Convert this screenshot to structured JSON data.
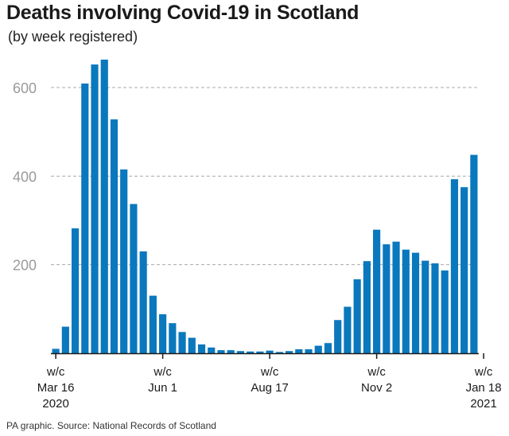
{
  "header": {
    "title": "Deaths involving Covid-19 in Scotland",
    "subtitle": "(by week registered)"
  },
  "footer": {
    "source": "PA graphic. Source: National Records of Scotland"
  },
  "colors": {
    "bar": "#0a78bd",
    "grid": "#aaaaaa",
    "axis": "#1a1a1a",
    "tick_label": "#9a9a9a"
  },
  "chart_data": {
    "type": "bar",
    "title": "Deaths involving Covid-19 in Scotland",
    "subtitle": "(by week registered)",
    "xlabel": "",
    "ylabel": "",
    "ylim": [
      0,
      700
    ],
    "yticks": [
      200,
      400,
      600
    ],
    "grid": true,
    "x_tick_labels": [
      {
        "index": 0,
        "lines": [
          "w/c",
          "Mar 16",
          "2020"
        ]
      },
      {
        "index": 11,
        "lines": [
          "w/c",
          "Jun 1"
        ]
      },
      {
        "index": 22,
        "lines": [
          "w/c",
          "Aug 17"
        ]
      },
      {
        "index": 33,
        "lines": [
          "w/c",
          "Nov 2"
        ]
      },
      {
        "index": 44,
        "lines": [
          "w/c",
          "Jan 18",
          "2021"
        ]
      }
    ],
    "values": [
      10,
      60,
      282,
      609,
      652,
      663,
      528,
      415,
      337,
      230,
      130,
      88,
      68,
      48,
      35,
      20,
      13,
      7,
      7,
      5,
      4,
      4,
      6,
      3,
      5,
      9,
      9,
      17,
      23,
      75,
      105,
      167,
      208,
      279,
      246,
      252,
      234,
      227,
      209,
      203,
      187,
      393,
      375,
      448
    ]
  }
}
